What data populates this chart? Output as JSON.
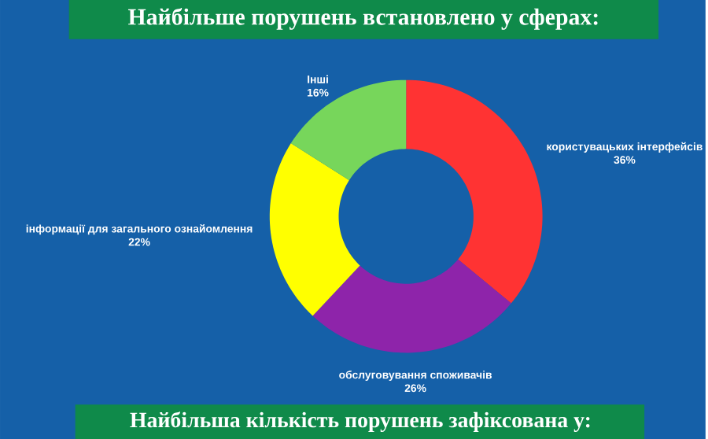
{
  "chart_data": {
    "type": "donut",
    "title": "Найбільше порушень встановлено у сферах:",
    "categories": [
      "користувацьких інтерфейсів",
      "обслуговування споживачів",
      "інформації для загального ознайомлення",
      "Інші"
    ],
    "values": [
      36,
      26,
      22,
      16
    ],
    "colors": [
      "#ff3333",
      "#8e24aa",
      "#ffff00",
      "#77d65b"
    ],
    "value_labels": [
      "36%",
      "26%",
      "22%",
      "16%"
    ],
    "annotations": [
      "Найбільша кількість порушень зафіксована у:"
    ]
  }
}
